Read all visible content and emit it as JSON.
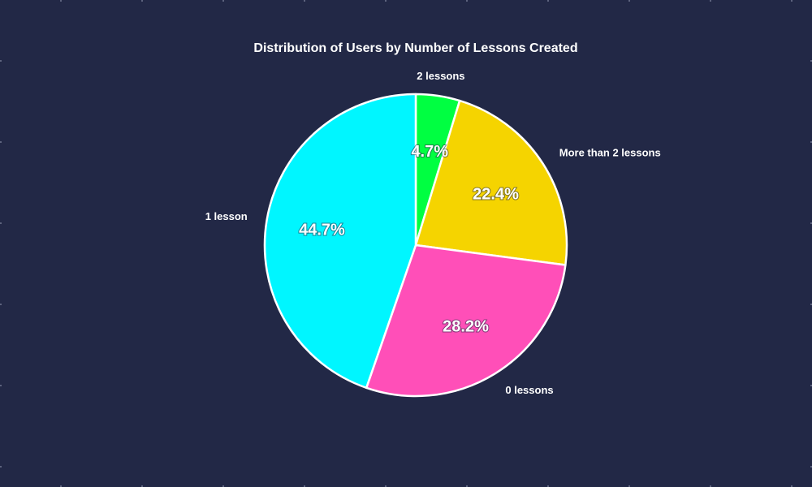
{
  "chart_data": {
    "type": "pie",
    "title": "Distribution of Users by Number of Lessons Created",
    "slices": [
      {
        "label": "2 lessons",
        "value": 4.7,
        "color": "#00ff41",
        "pct_text": "4.7%"
      },
      {
        "label": "More than 2 lessons",
        "value": 22.4,
        "color": "#f5d400",
        "pct_text": "22.4%"
      },
      {
        "label": "0 lessons",
        "value": 28.2,
        "color": "#ff4fb8",
        "pct_text": "28.2%"
      },
      {
        "label": "1 lesson",
        "value": 44.7,
        "color": "#00f6ff",
        "pct_text": "44.7%"
      }
    ],
    "start_angle_deg": 0,
    "direction": "clockwise",
    "slice_border_color": "#ffffff",
    "background_color": "#222846",
    "legend": "none"
  }
}
